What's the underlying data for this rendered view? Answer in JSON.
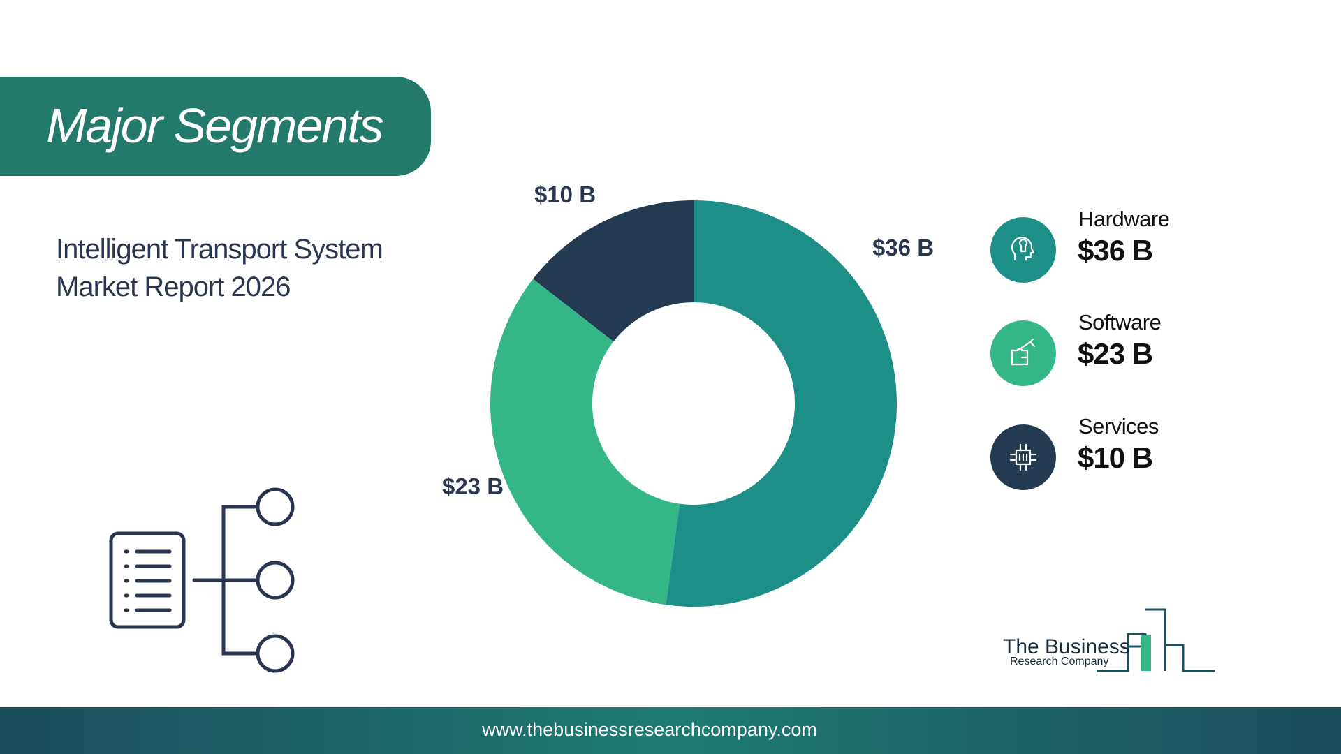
{
  "chart_data": {
    "type": "donut",
    "title": "Major Segments",
    "subtitle": [
      "Intelligent Transport System",
      "Market Report 2026"
    ],
    "categories": [
      "Hardware",
      "Software",
      "Services"
    ],
    "values": [
      36,
      23,
      10
    ],
    "value_labels": [
      "$36 B",
      "$23 B",
      "$10 B"
    ],
    "colors": [
      "#1e8f86",
      "#34b687",
      "#243a50"
    ]
  },
  "logo": {
    "line1": "The Business",
    "line2": "Research Company"
  },
  "footer": {
    "url": "www.thebusinessresearchcompany.com"
  }
}
